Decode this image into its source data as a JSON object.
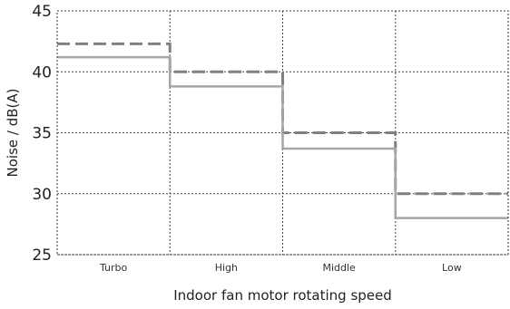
{
  "chart_data": {
    "type": "line",
    "step": true,
    "categories": [
      "Turbo",
      "High",
      "Middle",
      "Low"
    ],
    "series": [
      {
        "style": "dashed",
        "color": "#808080",
        "values": [
          42.3,
          40.0,
          35.0,
          30.0
        ]
      },
      {
        "style": "solid",
        "color": "#a6a6a6",
        "values": [
          41.2,
          38.8,
          33.7,
          28.0
        ]
      }
    ],
    "ylim": [
      25,
      45
    ],
    "yticks": [
      "25",
      "30",
      "35",
      "40",
      "45"
    ],
    "xlabel": "Indoor fan motor rotating speed",
    "ylabel": "Noise / dB(A)",
    "grid": true
  }
}
